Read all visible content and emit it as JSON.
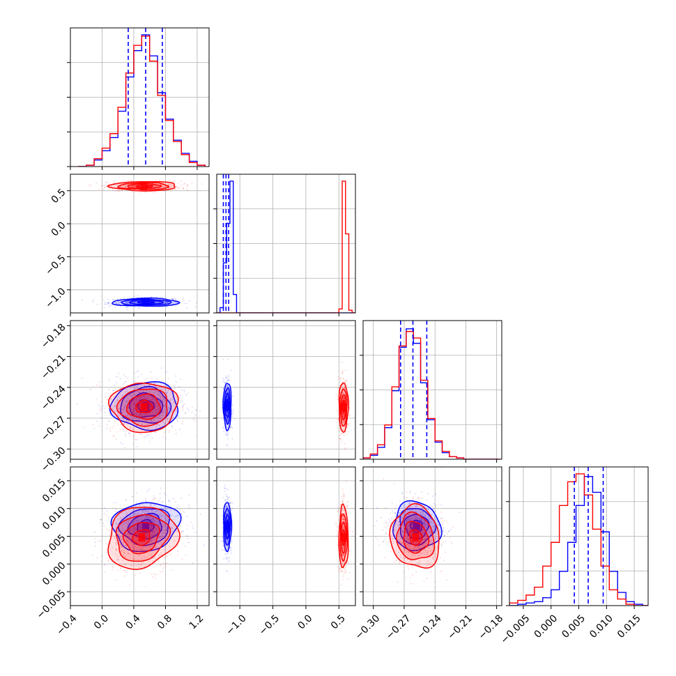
{
  "chart_data": {
    "type": "corner",
    "series": [
      {
        "name": "",
        "color": "#0000ff"
      },
      {
        "name": "",
        "color": "#ff0000"
      }
    ],
    "quantile_lines_color": "#0000ff",
    "params": [
      {
        "range": [
          -0.4,
          1.35
        ],
        "ticks": [
          -0.4,
          0.0,
          0.4,
          0.8,
          1.2
        ],
        "ticklabels": [
          "−0.4",
          "0.0",
          "0.4",
          "0.8",
          "1.2"
        ]
      },
      {
        "range": [
          -1.35,
          0.75
        ],
        "ticks": [
          -1.0,
          -0.5,
          0.0,
          0.5
        ],
        "ticklabels": [
          "−1.0",
          "−0.5",
          "0.0",
          "0.5"
        ]
      },
      {
        "range": [
          -0.31,
          -0.175
        ],
        "ticks": [
          -0.3,
          -0.27,
          -0.24,
          -0.21,
          -0.18
        ],
        "ticklabels": [
          "−0.30",
          "−0.27",
          "−0.24",
          "−0.21",
          "−0.18"
        ]
      },
      {
        "range": [
          -0.0075,
          0.0175
        ],
        "ticks": [
          -0.005,
          0.0,
          0.005,
          0.01,
          0.015
        ],
        "ticklabels": [
          "−0.005",
          "0.000",
          "0.005",
          "0.010",
          "0.015"
        ]
      }
    ],
    "hist1d": [
      {
        "edges": [
          -0.3,
          -0.2,
          -0.1,
          0.0,
          0.1,
          0.2,
          0.3,
          0.4,
          0.5,
          0.6,
          0.7,
          0.8,
          0.9,
          1.0,
          1.1,
          1.2,
          1.3
        ],
        "blue": [
          0,
          1,
          5,
          12,
          22,
          42,
          68,
          88,
          100,
          84,
          56,
          36,
          20,
          10,
          4,
          1
        ],
        "red": [
          0,
          1,
          6,
          14,
          25,
          45,
          71,
          92,
          99,
          80,
          54,
          35,
          19,
          9,
          3,
          1
        ],
        "quantiles_blue": [
          0.33,
          0.55,
          0.76
        ]
      },
      {
        "edges": [
          -1.35,
          -1.3,
          -1.25,
          -1.2,
          -1.15,
          -1.1,
          -1.05,
          0.45,
          0.5,
          0.55,
          0.6,
          0.65,
          0.7,
          0.75
        ],
        "blue": [
          0,
          4,
          38,
          68,
          100,
          14,
          0,
          0,
          0,
          0,
          0,
          0,
          0
        ],
        "red": [
          0,
          0,
          0,
          0,
          0,
          0,
          0,
          0,
          3,
          100,
          60,
          2,
          0
        ],
        "quantiles_blue": [
          -1.25,
          -1.21,
          -1.17
        ]
      },
      {
        "edges": [
          -0.31,
          -0.303,
          -0.296,
          -0.289,
          -0.282,
          -0.275,
          -0.268,
          -0.261,
          -0.254,
          -0.247,
          -0.24,
          -0.233,
          -0.226,
          -0.219,
          -0.212,
          -0.205,
          -0.198,
          -0.191,
          -0.184,
          -0.177
        ],
        "blue": [
          1,
          3,
          9,
          24,
          52,
          85,
          99,
          88,
          58,
          30,
          13,
          5,
          2,
          1,
          0,
          0,
          0,
          0,
          0
        ],
        "red": [
          1,
          4,
          11,
          26,
          55,
          86,
          97,
          92,
          60,
          31,
          14,
          6,
          2,
          1,
          0,
          0,
          0,
          0,
          0
        ],
        "quantiles_blue": [
          -0.2735,
          -0.2615,
          -0.248
        ]
      },
      {
        "edges": [
          -0.0075,
          -0.006,
          -0.0045,
          -0.003,
          -0.0015,
          0.0,
          0.0015,
          0.003,
          0.0045,
          0.006,
          0.0075,
          0.009,
          0.0105,
          0.012,
          0.0135,
          0.015,
          0.0165,
          0.0175
        ],
        "blue": [
          0,
          1,
          2,
          3,
          6,
          12,
          26,
          48,
          76,
          98,
          86,
          56,
          26,
          10,
          3,
          1,
          0
        ],
        "red": [
          2,
          4,
          8,
          14,
          30,
          48,
          76,
          94,
          100,
          84,
          58,
          30,
          12,
          5,
          1,
          0,
          0
        ],
        "quantiles_blue": [
          0.0042,
          0.0067,
          0.0094
        ]
      }
    ],
    "pairs": [
      {
        "row": 1,
        "col": 0,
        "blue": {
          "mx": 0.55,
          "sx": 0.21,
          "my": -1.19,
          "sy": 0.03,
          "rho": 0.0
        },
        "red": {
          "mx": 0.53,
          "sx": 0.21,
          "my": 0.57,
          "sy": 0.035,
          "rho": 0.0
        }
      },
      {
        "row": 2,
        "col": 0,
        "blue": {
          "mx": 0.55,
          "sx": 0.21,
          "my": -0.258,
          "sy": 0.0115,
          "rho": 0.0
        },
        "red": {
          "mx": 0.53,
          "sx": 0.21,
          "my": -0.259,
          "sy": 0.012,
          "rho": 0.0
        }
      },
      {
        "row": 2,
        "col": 1,
        "blue": {
          "mx": -1.19,
          "sx": 0.03,
          "my": -0.258,
          "sy": 0.0115,
          "rho": 0.0
        },
        "red": {
          "mx": 0.57,
          "sx": 0.035,
          "my": -0.259,
          "sy": 0.012,
          "rho": 0.0
        }
      },
      {
        "row": 3,
        "col": 0,
        "blue": {
          "mx": 0.55,
          "sx": 0.21,
          "my": 0.0068,
          "sy": 0.0022,
          "rho": 0.1
        },
        "red": {
          "mx": 0.5,
          "sx": 0.22,
          "my": 0.0048,
          "sy": 0.0028,
          "rho": 0.15
        }
      },
      {
        "row": 3,
        "col": 1,
        "blue": {
          "mx": -1.19,
          "sx": 0.03,
          "my": 0.0068,
          "sy": 0.0022,
          "rho": 0.0
        },
        "red": {
          "mx": 0.57,
          "sx": 0.035,
          "my": 0.0048,
          "sy": 0.0028,
          "rho": 0.0
        }
      },
      {
        "row": 3,
        "col": 2,
        "blue": {
          "mx": -0.258,
          "sx": 0.0115,
          "my": 0.0068,
          "sy": 0.0022,
          "rho": -0.05
        },
        "red": {
          "mx": -0.259,
          "sx": 0.012,
          "my": 0.0048,
          "sy": 0.0028,
          "rho": -0.1
        }
      }
    ],
    "contour_levels_sigma": [
      0.5,
      1.0,
      1.5,
      2.0
    ],
    "grid": true
  }
}
